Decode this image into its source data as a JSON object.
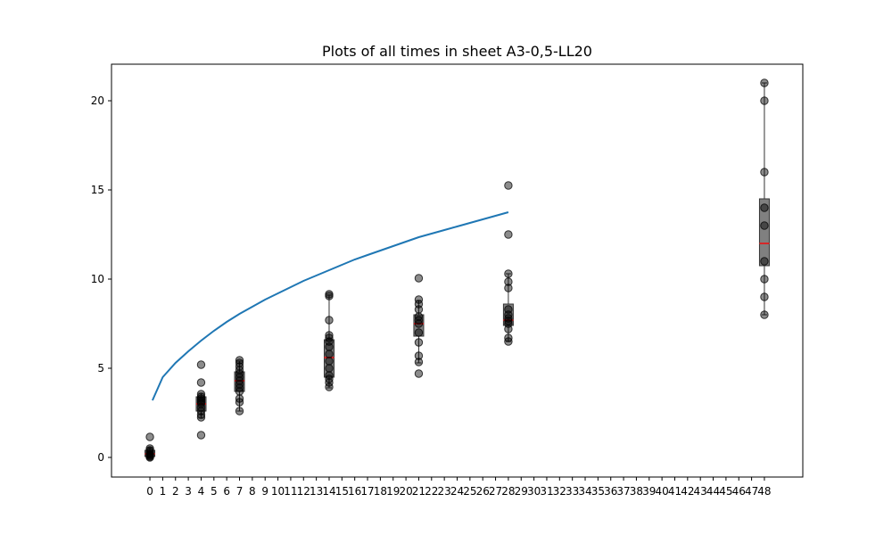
{
  "chart_data": {
    "type": "boxplot",
    "title": "Plots of all times in sheet A3-0,5-LL20",
    "xlabel": "",
    "ylabel": "",
    "xlim": [
      -3,
      51
    ],
    "ylim": [
      -1.1,
      22.05
    ],
    "x_ticks": [
      0,
      1,
      2,
      3,
      4,
      5,
      6,
      7,
      8,
      9,
      10,
      11,
      12,
      13,
      14,
      15,
      16,
      17,
      18,
      19,
      20,
      21,
      22,
      23,
      24,
      25,
      26,
      27,
      28,
      29,
      30,
      31,
      32,
      33,
      34,
      35,
      36,
      37,
      38,
      39,
      40,
      41,
      42,
      43,
      44,
      45,
      46,
      47,
      48
    ],
    "y_ticks": [
      0,
      5,
      10,
      15,
      20
    ],
    "colors": {
      "curve": "#1f77b4",
      "box_fill": "#808080",
      "median": "#d62728",
      "point": "#000000"
    },
    "curve": {
      "x": [
        0.2,
        1,
        2,
        3,
        4,
        5,
        6,
        7,
        8,
        9,
        10,
        11,
        12,
        13,
        14,
        15,
        16,
        17,
        18,
        19,
        20,
        21,
        22,
        23,
        24,
        25,
        26,
        27,
        28
      ],
      "y": [
        3.2,
        4.5,
        5.3,
        5.95,
        6.55,
        7.1,
        7.6,
        8.05,
        8.45,
        8.85,
        9.2,
        9.55,
        9.9,
        10.2,
        10.5,
        10.8,
        11.1,
        11.35,
        11.6,
        11.85,
        12.1,
        12.35,
        12.55,
        12.75,
        12.95,
        13.15,
        13.35,
        13.55,
        13.75
      ]
    },
    "boxes": [
      {
        "x": 0,
        "q1": 0.05,
        "median": 0.2,
        "q3": 0.4,
        "whisker_low": 0.0,
        "whisker_high": 0.55
      },
      {
        "x": 4,
        "q1": 2.6,
        "median": 3.0,
        "q3": 3.4,
        "whisker_low": 2.2,
        "whisker_high": 3.6
      },
      {
        "x": 7,
        "q1": 3.7,
        "median": 4.3,
        "q3": 4.8,
        "whisker_low": 2.6,
        "whisker_high": 5.4
      },
      {
        "x": 14,
        "q1": 4.5,
        "median": 5.6,
        "q3": 6.6,
        "whisker_low": 3.9,
        "whisker_high": 9.1
      },
      {
        "x": 21,
        "q1": 6.8,
        "median": 7.5,
        "q3": 8.0,
        "whisker_low": 5.3,
        "whisker_high": 8.8
      },
      {
        "x": 28,
        "q1": 7.4,
        "median": 7.7,
        "q3": 8.6,
        "whisker_low": 6.5,
        "whisker_high": 10.3
      },
      {
        "x": 48,
        "q1": 10.75,
        "median": 12.0,
        "q3": 14.5,
        "whisker_low": 8.0,
        "whisker_high": 21.0
      }
    ],
    "points": [
      {
        "x": 0,
        "y": [
          0.0,
          0.05,
          0.1,
          0.15,
          0.2,
          0.3,
          0.4,
          0.5,
          1.15
        ]
      },
      {
        "x": 4,
        "y": [
          1.25,
          2.25,
          2.4,
          2.6,
          2.8,
          3.0,
          3.1,
          3.2,
          3.3,
          3.4,
          3.55,
          4.2,
          5.2
        ]
      },
      {
        "x": 7,
        "y": [
          2.6,
          3.1,
          3.3,
          3.7,
          3.9,
          4.1,
          4.3,
          4.5,
          4.7,
          4.9,
          5.1,
          5.3,
          5.45
        ]
      },
      {
        "x": 14,
        "y": [
          3.95,
          4.2,
          4.4,
          4.6,
          5.0,
          5.4,
          5.8,
          6.2,
          6.5,
          6.7,
          6.85,
          7.7,
          9.05,
          9.15
        ]
      },
      {
        "x": 21,
        "y": [
          4.7,
          5.35,
          5.7,
          6.45,
          7.0,
          7.5,
          7.7,
          7.9,
          8.3,
          8.6,
          8.85,
          10.05
        ]
      },
      {
        "x": 28,
        "y": [
          6.5,
          6.7,
          7.2,
          7.5,
          7.65,
          7.8,
          8.0,
          8.3,
          9.5,
          9.85,
          10.3,
          12.5,
          15.25
        ]
      },
      {
        "x": 48,
        "y": [
          8.0,
          9.0,
          10.0,
          11.0,
          13.0,
          14.0,
          16.0,
          20.0,
          21.0
        ]
      }
    ]
  }
}
